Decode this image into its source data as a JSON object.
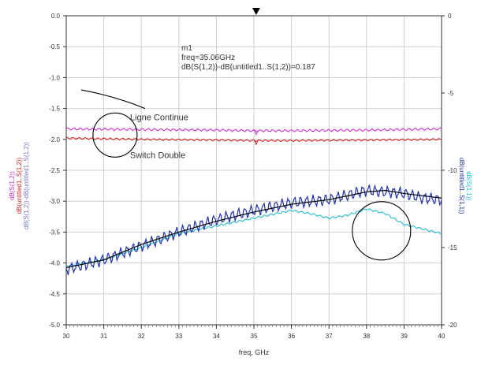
{
  "chart_data": {
    "type": "line",
    "title": "",
    "xlabel": "freq, GHz",
    "xlim": [
      30,
      40
    ],
    "x_ticks": [
      "30",
      "31",
      "32",
      "33",
      "34",
      "35",
      "36",
      "37",
      "38",
      "39",
      "40"
    ],
    "ylim_left": [
      -5.0,
      0.0
    ],
    "y_ticks_left": [
      "0.0",
      "-0.5",
      "-1.0",
      "-1.5",
      "-2.0",
      "-2.5",
      "-3.0",
      "-3.5",
      "-4.0",
      "-4.5",
      "-5.0"
    ],
    "ylim_right": [
      -20,
      0
    ],
    "y_ticks_right": [
      "0",
      "-5",
      "-10",
      "-15",
      "-20"
    ],
    "left_axis_labels": [
      {
        "text": "dB(S(1,2))",
        "color": "#cc33cc"
      },
      {
        "text": "dB(untitled1..S(1,2))",
        "color": "#cc2222"
      },
      {
        "text": "dB(S(1,2))-dB(untitled1..S(1,2))",
        "color": "#7777cc"
      }
    ],
    "right_axis_labels": [
      {
        "text": "dB(S(1,1))",
        "color": "#22bbcc"
      },
      {
        "text": "dB(untitled1..S(1,1))",
        "color": "#2233aa"
      }
    ],
    "grid": true,
    "series": [
      {
        "axis": "left",
        "color": "#cc33cc",
        "ripple": 0.015,
        "x": [
          30,
          32,
          34,
          35,
          36,
          38,
          40
        ],
        "y": [
          -1.83,
          -1.84,
          -1.85,
          -1.86,
          -1.86,
          -1.85,
          -1.83
        ]
      },
      {
        "axis": "left",
        "color": "#cc2222",
        "ripple": 0.012,
        "x": [
          30,
          32,
          34,
          35,
          36,
          38,
          40
        ],
        "y": [
          -1.98,
          -2.0,
          -2.01,
          -2.02,
          -2.02,
          -2.01,
          -2.0
        ]
      },
      {
        "axis": "right",
        "color": "#22bbcc",
        "ripple": 0.05,
        "x": [
          30,
          31,
          32,
          33,
          34,
          35,
          36,
          36.5,
          37,
          37.5,
          38,
          38.5,
          39,
          39.5,
          40
        ],
        "y": [
          -16.2,
          -15.8,
          -15.0,
          -14.1,
          -13.6,
          -13.1,
          -12.6,
          -12.8,
          -13.1,
          -12.9,
          -12.5,
          -12.8,
          -13.5,
          -13.8,
          -14.1
        ]
      },
      {
        "axis": "right",
        "color": "#2233aa",
        "ripple": 0.3,
        "x": [
          30,
          31,
          32,
          33,
          34,
          35,
          36,
          37,
          37.5,
          38,
          38.5,
          39,
          39.5,
          40
        ],
        "y": [
          -16.4,
          -15.8,
          -14.9,
          -14.0,
          -13.2,
          -12.6,
          -12.1,
          -11.9,
          -11.6,
          -11.3,
          -11.4,
          -11.5,
          -11.8,
          -11.9
        ]
      },
      {
        "axis": "right",
        "color": "#000000",
        "ripple": 0,
        "x": [
          30,
          31,
          32,
          33,
          34,
          35,
          36,
          37,
          38,
          38.5,
          39,
          40
        ],
        "y": [
          -16.3,
          -15.8,
          -14.8,
          -14.0,
          -13.3,
          -12.7,
          -12.2,
          -11.9,
          -11.4,
          -11.3,
          -11.5,
          -11.8
        ]
      }
    ],
    "marker": {
      "name": "m1",
      "x": 35.06,
      "lines": [
        "m1",
        "freq=35.06GHz",
        "dB(S(1,2))-dB(untitled1..S(1,2))=0.187"
      ]
    },
    "annotations": [
      {
        "text": "Ligne Continue",
        "x": 31.7,
        "y": -1.69
      },
      {
        "text": "Switch Double",
        "x": 31.7,
        "y": -2.3
      }
    ]
  }
}
